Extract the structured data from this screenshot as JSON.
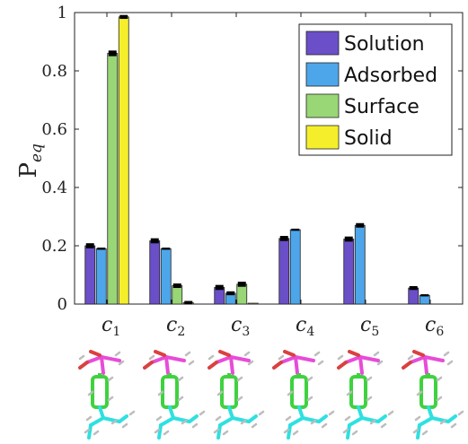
{
  "chart_data": {
    "type": "bar",
    "ylabel": "P",
    "ylabel_subscript": "eq",
    "ylim": [
      0,
      1
    ],
    "yticks": [
      "0",
      "0.2",
      "0.4",
      "0.6",
      "0.8",
      "1"
    ],
    "ytick_values": [
      0,
      0.2,
      0.4,
      0.6,
      0.8,
      1.0
    ],
    "categories": [
      {
        "base": "c",
        "sub": "1"
      },
      {
        "base": "c",
        "sub": "2"
      },
      {
        "base": "c",
        "sub": "3"
      },
      {
        "base": "c",
        "sub": "4"
      },
      {
        "base": "c",
        "sub": "5"
      },
      {
        "base": "c",
        "sub": "6"
      }
    ],
    "series": [
      {
        "name": "Solution",
        "color": "#6a4fc8",
        "values": [
          0.2,
          0.217,
          0.057,
          0.225,
          0.223,
          0.055
        ],
        "errors": [
          0.005,
          0.005,
          0.005,
          0.005,
          0.005,
          0.003
        ]
      },
      {
        "name": "Adsorbed",
        "color": "#4da6ea",
        "values": [
          0.19,
          0.19,
          0.037,
          0.255,
          0.27,
          0.03
        ],
        "errors": [
          0,
          0,
          0.003,
          0,
          0.004,
          0
        ]
      },
      {
        "name": "Surface",
        "color": "#99d676",
        "values": [
          0.86,
          0.063,
          0.068,
          0.0,
          0.0,
          0.0
        ],
        "errors": [
          0.006,
          0.004,
          0.005,
          0,
          0,
          0
        ]
      },
      {
        "name": "Solid",
        "color": "#f5ef2b",
        "values": [
          0.985,
          0.005,
          0.003,
          0.0,
          0.0,
          0.0
        ],
        "errors": [
          0.003,
          0.002,
          0.002,
          0,
          0,
          0
        ]
      }
    ],
    "legend_position": "top-right",
    "grid": false
  }
}
